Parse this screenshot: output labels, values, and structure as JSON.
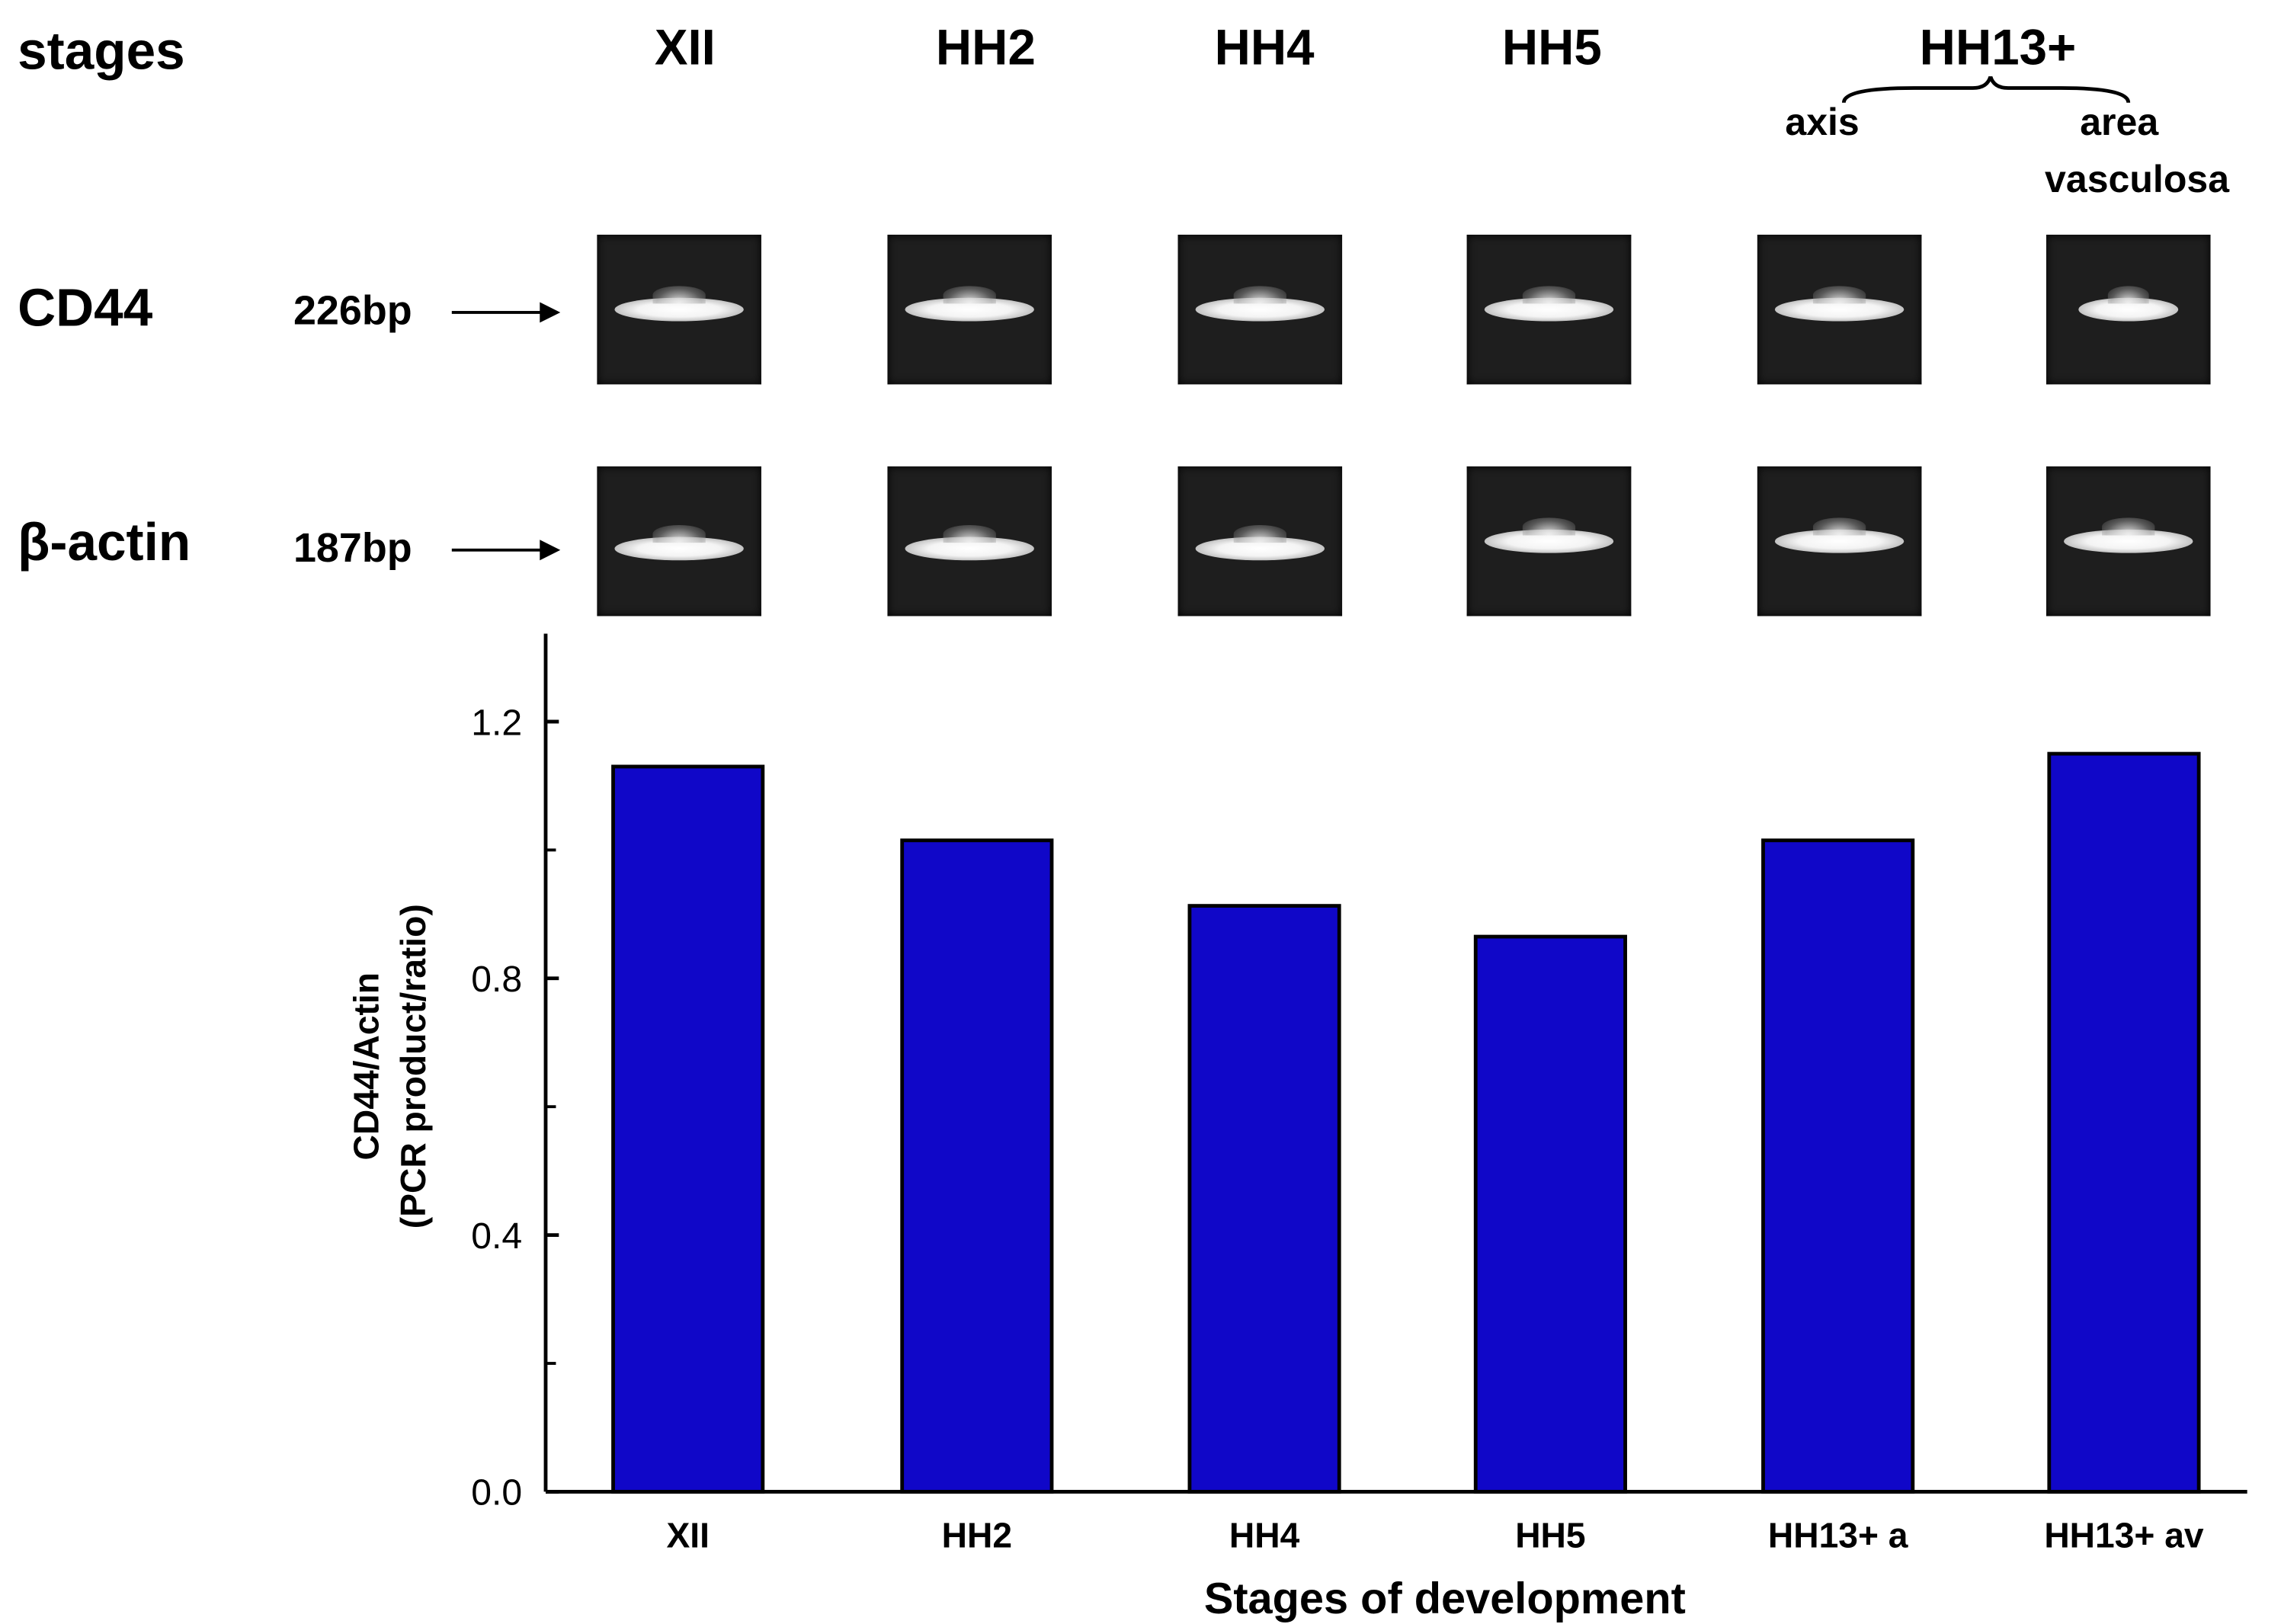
{
  "header": {
    "stages_label": "stages",
    "stages": [
      "XII",
      "HH2",
      "HH4",
      "HH5"
    ],
    "hh13_label": "HH13+",
    "hh13_sub": [
      "axis",
      "area",
      "vasculosa"
    ]
  },
  "gel_rows": [
    {
      "label": "CD44",
      "size": "226bp"
    },
    {
      "label": "β-actin",
      "size": "187bp"
    }
  ],
  "chart_data": {
    "type": "bar",
    "categories": [
      "XII",
      "HH2",
      "HH4",
      "HH5",
      "HH13+ a",
      "HH13+ av"
    ],
    "values": [
      1.13,
      1.015,
      0.913,
      0.865,
      1.015,
      1.15
    ],
    "title": "",
    "xlabel": "Stages of development",
    "ylabel_line1": "CD44/Actin",
    "ylabel_line2": "(PCR product/ratio)",
    "ylim": [
      0,
      1.34
    ],
    "yticks": [
      "0.0",
      "0.4",
      "0.8",
      "1.2"
    ],
    "ytick_values": [
      0,
      0.4,
      0.8,
      1.2
    ],
    "minor_ticks": [
      0.2,
      0.6,
      1.0
    ],
    "bar_color": "#1007c8",
    "grid": false
  }
}
